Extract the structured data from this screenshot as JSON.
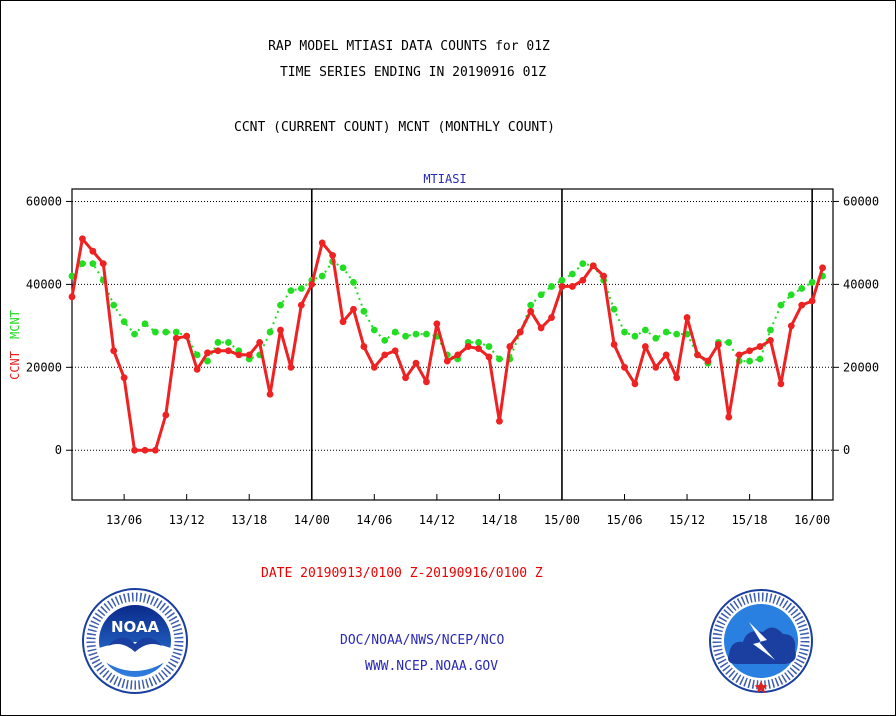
{
  "header": {
    "title_line1": "RAP MODEL MTIASI DATA COUNTS for 01Z",
    "title_line2": "TIME SERIES ENDING IN 20190916 01Z",
    "subtitle": "CCNT (CURRENT COUNT) MCNT (MONTHLY COUNT)"
  },
  "footer": {
    "date_range": "DATE 20190913/0100 Z-20190916/0100 Z",
    "agency": "DOC/NOAA/NWS/NCEP/NCO",
    "website": "WWW.NCEP.NOAA.GOV"
  },
  "logos": {
    "left_name": "noaa-logo",
    "left_text": "NOAA",
    "right_name": "nws-logo"
  },
  "colors": {
    "ccnt": "#ee2222",
    "mcnt": "#22dd22",
    "label_blue": "#2a2ab8"
  },
  "chart_data": {
    "type": "line",
    "panel_label": "MTIASI",
    "ylabel_ccnt": "CCNT",
    "ylabel_mcnt": "MCNT",
    "ylim": [
      -12000,
      63000
    ],
    "yticks": [
      0,
      20000,
      40000,
      60000
    ],
    "ytick_labels": [
      "0",
      "20000",
      "40000",
      "60000"
    ],
    "xlim": [
      0,
      73
    ],
    "xticks": [
      5,
      11,
      17,
      23,
      29,
      35,
      41,
      47,
      53,
      59,
      65,
      71
    ],
    "xtick_labels": [
      "13/06",
      "13/12",
      "13/18",
      "14/00",
      "14/06",
      "14/12",
      "14/18",
      "15/00",
      "15/06",
      "15/12",
      "15/18",
      "16/00"
    ],
    "day_boundaries": [
      23,
      47,
      71
    ],
    "grid": "horizontal dotted",
    "series": [
      {
        "name": "CCNT",
        "color": "#ee2222",
        "values": [
          37000,
          51000,
          48000,
          45000,
          24000,
          17500,
          0,
          0,
          0,
          8500,
          27000,
          27500,
          19500,
          23500,
          24000,
          24000,
          23000,
          23000,
          26000,
          13500,
          29000,
          20000,
          35000,
          40000,
          50000,
          47000,
          31000,
          34000,
          25000,
          20000,
          23000,
          24000,
          17500,
          21000,
          16500,
          30500,
          21500,
          23000,
          25000,
          24500,
          22500,
          7000,
          25000,
          28500,
          33500,
          29500,
          32000,
          39500,
          39500,
          41000,
          44500,
          42000,
          25500,
          20000,
          16000,
          25000,
          20000,
          23000,
          17500,
          32000,
          23000,
          21500,
          25500,
          8000,
          23000,
          24000,
          25000,
          26500,
          16000,
          30000,
          35000,
          36000,
          44000
        ]
      },
      {
        "name": "MCNT",
        "color": "#22dd22",
        "values": [
          42000,
          45000,
          45000,
          41000,
          35000,
          31000,
          28000,
          30500,
          28500,
          28500,
          28500,
          27500,
          23000,
          21500,
          26000,
          26000,
          24000,
          22000,
          23000,
          28500,
          35000,
          38500,
          39000,
          41000,
          42000,
          45500,
          44000,
          40500,
          33500,
          29000,
          26500,
          28500,
          27500,
          28000,
          28000,
          27500,
          23000,
          22000,
          26000,
          26000,
          25000,
          22000,
          22000,
          28500,
          35000,
          37500,
          39500,
          41000,
          42500,
          45000,
          44500,
          41000,
          34000,
          28500,
          27500,
          29000,
          27000,
          28500,
          28000,
          28000,
          23000,
          21000,
          26000,
          26000,
          21500,
          21500,
          22000,
          29000,
          35000,
          37500,
          39000,
          40500,
          42000
        ]
      }
    ]
  }
}
